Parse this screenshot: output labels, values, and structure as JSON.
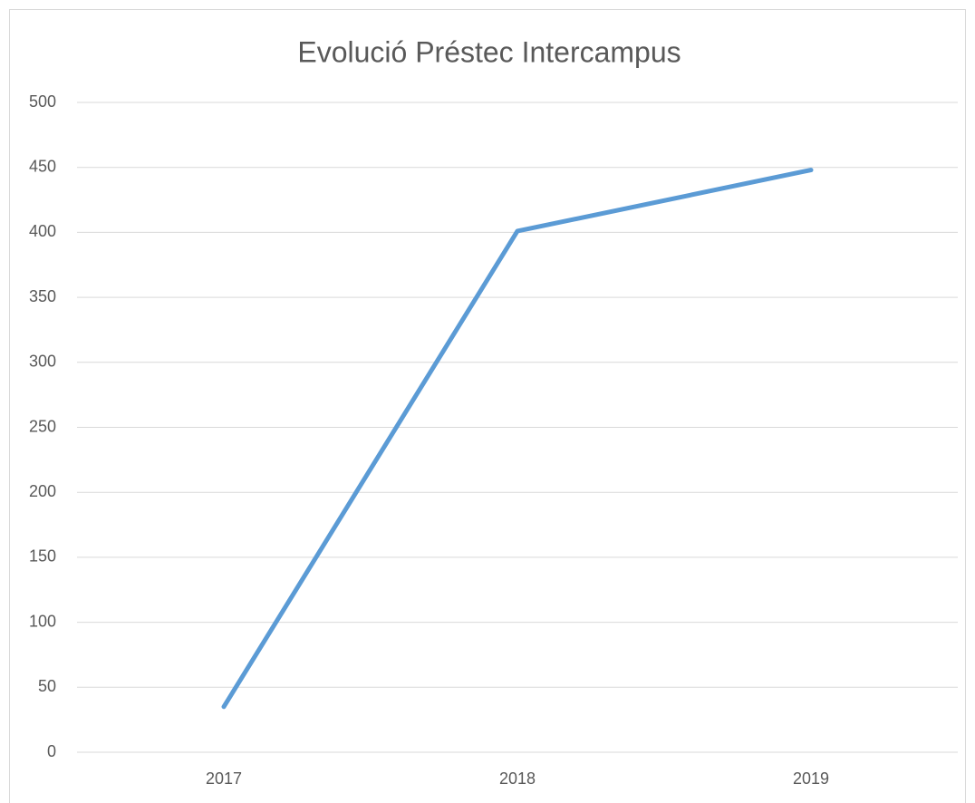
{
  "chart_data": {
    "type": "line",
    "title": "Evolució Préstec Intercampus",
    "categories": [
      "2017",
      "2018",
      "2019"
    ],
    "series": [
      {
        "name": "Préstec Intercampus",
        "color": "#5b9bd5",
        "values": [
          35,
          401,
          448
        ]
      }
    ],
    "ylim": [
      0,
      500
    ],
    "yticks": [
      0,
      50,
      100,
      150,
      200,
      250,
      300,
      350,
      400,
      450,
      500
    ],
    "grid": true
  }
}
